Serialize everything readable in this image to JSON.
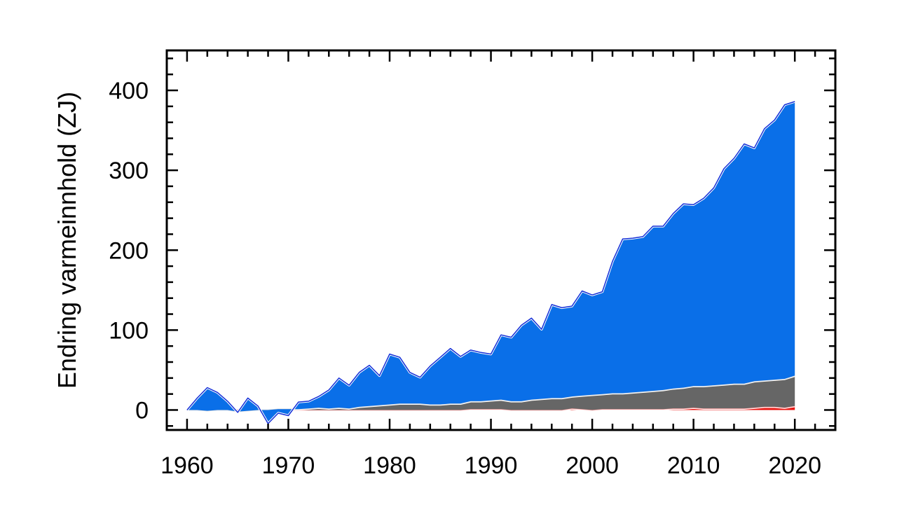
{
  "chart_data": {
    "type": "area",
    "stacked": true,
    "title": "",
    "xlabel": "",
    "ylabel": "Endring varmeinnhold (ZJ)",
    "xlim": [
      1958,
      2024
    ],
    "ylim": [
      -25,
      450
    ],
    "x_ticks": [
      1960,
      1970,
      1980,
      1990,
      2000,
      2010,
      2020
    ],
    "y_ticks": [
      0,
      100,
      200,
      300,
      400
    ],
    "grid": false,
    "legend": "none",
    "x": [
      1960,
      1961,
      1962,
      1963,
      1964,
      1965,
      1966,
      1967,
      1968,
      1969,
      1970,
      1971,
      1972,
      1973,
      1974,
      1975,
      1976,
      1977,
      1978,
      1979,
      1980,
      1981,
      1982,
      1983,
      1984,
      1985,
      1986,
      1987,
      1988,
      1989,
      1990,
      1991,
      1992,
      1993,
      1994,
      1995,
      1996,
      1997,
      1998,
      1999,
      2000,
      2001,
      2002,
      2003,
      2004,
      2005,
      2006,
      2007,
      2008,
      2009,
      2010,
      2011,
      2012,
      2013,
      2014,
      2015,
      2016,
      2017,
      2018,
      2019,
      2020
    ],
    "series": [
      {
        "color": "#e8120e",
        "values": [
          0,
          0,
          0,
          0,
          0,
          0,
          0,
          0,
          0,
          0,
          0,
          0,
          0,
          0,
          0,
          0,
          0,
          0,
          0,
          0,
          0,
          0,
          0,
          0,
          0,
          0,
          0,
          0,
          1,
          1,
          1,
          1,
          0,
          0,
          0,
          0,
          0,
          0,
          2,
          1,
          0,
          1,
          1,
          1,
          1,
          1,
          1,
          1,
          2,
          2,
          3,
          2,
          2,
          2,
          2,
          2,
          3,
          4,
          4,
          3,
          5
        ]
      },
      {
        "color": "#666666",
        "values": [
          0,
          0,
          -1,
          0,
          0,
          -2,
          -1,
          0,
          0,
          1,
          1,
          1,
          2,
          3,
          2,
          3,
          2,
          4,
          5,
          6,
          7,
          8,
          8,
          8,
          7,
          7,
          8,
          8,
          10,
          10,
          11,
          12,
          11,
          11,
          13,
          14,
          15,
          15,
          15,
          17,
          19,
          19,
          20,
          20,
          21,
          22,
          23,
          24,
          25,
          26,
          27,
          28,
          29,
          30,
          31,
          31,
          33,
          33,
          34,
          36,
          38
        ]
      },
      {
        "color": "#0a6fe8",
        "values": [
          0,
          15,
          29,
          22,
          11,
          -1,
          16,
          5,
          -17,
          -5,
          -8,
          9,
          9,
          14,
          23,
          37,
          29,
          43,
          51,
          37,
          63,
          58,
          39,
          33,
          48,
          59,
          69,
          59,
          64,
          61,
          58,
          81,
          80,
          95,
          102,
          87,
          117,
          113,
          113,
          131,
          125,
          128,
          165,
          193,
          193,
          194,
          206,
          205,
          219,
          230,
          227,
          235,
          247,
          270,
          282,
          300,
          292,
          315,
          325,
          343,
          343
        ]
      }
    ]
  }
}
